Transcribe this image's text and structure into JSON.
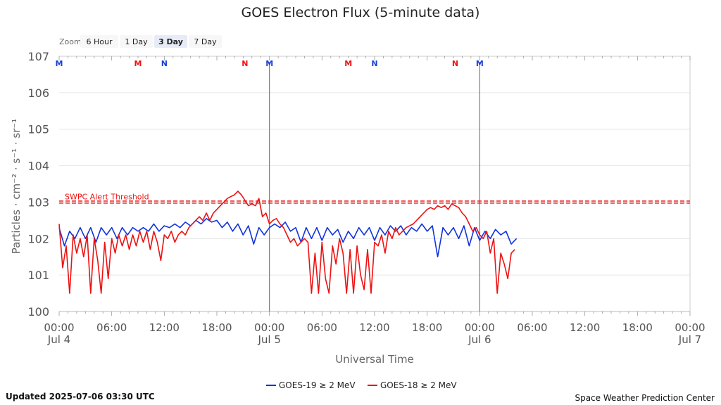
{
  "chart_data": {
    "type": "line",
    "title": "GOES Electron Flux (5-minute data)",
    "xlabel": "Universal Time",
    "ylabel": "Particles · cm⁻² · s⁻¹ · sr⁻¹",
    "y_scale": "log",
    "ylim_exponent": [
      0,
      7
    ],
    "yticks": [
      {
        "base": "10",
        "exp": "0"
      },
      {
        "base": "10",
        "exp": "1"
      },
      {
        "base": "10",
        "exp": "2"
      },
      {
        "base": "10",
        "exp": "3"
      },
      {
        "base": "10",
        "exp": "4"
      },
      {
        "base": "10",
        "exp": "5"
      },
      {
        "base": "10",
        "exp": "6"
      },
      {
        "base": "10",
        "exp": "7"
      }
    ],
    "xlim_hours": [
      0,
      72
    ],
    "xticks": [
      {
        "h": 0,
        "t": "00:00",
        "d": "Jul 4"
      },
      {
        "h": 6,
        "t": "06:00",
        "d": ""
      },
      {
        "h": 12,
        "t": "12:00",
        "d": ""
      },
      {
        "h": 18,
        "t": "18:00",
        "d": ""
      },
      {
        "h": 24,
        "t": "00:00",
        "d": "Jul 5"
      },
      {
        "h": 30,
        "t": "06:00",
        "d": ""
      },
      {
        "h": 36,
        "t": "12:00",
        "d": ""
      },
      {
        "h": 42,
        "t": "18:00",
        "d": ""
      },
      {
        "h": 48,
        "t": "00:00",
        "d": "Jul 6"
      },
      {
        "h": 54,
        "t": "06:00",
        "d": ""
      },
      {
        "h": 60,
        "t": "12:00",
        "d": ""
      },
      {
        "h": 66,
        "t": "18:00",
        "d": ""
      },
      {
        "h": 72,
        "t": "00:00",
        "d": "Jul 7"
      }
    ],
    "threshold": {
      "label": "SWPC Alert Threshold",
      "exponent": 3,
      "color": "#ee1111"
    },
    "day_lines_hours": [
      24,
      48
    ],
    "markers": [
      {
        "h": 0,
        "label": "M",
        "color": "#1a3fd6"
      },
      {
        "h": 9,
        "label": "M",
        "color": "#ee1111"
      },
      {
        "h": 12,
        "label": "N",
        "color": "#1a3fd6"
      },
      {
        "h": 21.2,
        "label": "N",
        "color": "#ee1111"
      },
      {
        "h": 24,
        "label": "M",
        "color": "#1a3fd6"
      },
      {
        "h": 33,
        "label": "M",
        "color": "#ee1111"
      },
      {
        "h": 36,
        "label": "N",
        "color": "#1a3fd6"
      },
      {
        "h": 45.2,
        "label": "N",
        "color": "#ee1111"
      },
      {
        "h": 48,
        "label": "M",
        "color": "#1a3fd6"
      }
    ],
    "series": [
      {
        "name": "GOES-19 ≥ 2 MeV",
        "color": "#1133dd",
        "points": [
          [
            0,
            2.3
          ],
          [
            0.6,
            1.8
          ],
          [
            1.2,
            2.2
          ],
          [
            1.8,
            2.0
          ],
          [
            2.4,
            2.3
          ],
          [
            3,
            2.0
          ],
          [
            3.6,
            2.3
          ],
          [
            4.2,
            1.9
          ],
          [
            4.8,
            2.3
          ],
          [
            5.4,
            2.1
          ],
          [
            6,
            2.3
          ],
          [
            6.6,
            2.0
          ],
          [
            7.2,
            2.3
          ],
          [
            7.8,
            2.1
          ],
          [
            8.4,
            2.3
          ],
          [
            9,
            2.2
          ],
          [
            9.6,
            2.3
          ],
          [
            10.2,
            2.2
          ],
          [
            10.8,
            2.4
          ],
          [
            11.4,
            2.2
          ],
          [
            12,
            2.35
          ],
          [
            12.6,
            2.3
          ],
          [
            13.2,
            2.4
          ],
          [
            13.8,
            2.3
          ],
          [
            14.4,
            2.45
          ],
          [
            15,
            2.35
          ],
          [
            15.6,
            2.5
          ],
          [
            16.2,
            2.4
          ],
          [
            16.8,
            2.55
          ],
          [
            17.4,
            2.45
          ],
          [
            18,
            2.5
          ],
          [
            18.6,
            2.3
          ],
          [
            19.2,
            2.45
          ],
          [
            19.8,
            2.2
          ],
          [
            20.4,
            2.4
          ],
          [
            21,
            2.1
          ],
          [
            21.6,
            2.35
          ],
          [
            22.2,
            1.85
          ],
          [
            22.8,
            2.3
          ],
          [
            23.4,
            2.1
          ],
          [
            24,
            2.3
          ],
          [
            24.6,
            2.4
          ],
          [
            25.2,
            2.3
          ],
          [
            25.8,
            2.45
          ],
          [
            26.4,
            2.2
          ],
          [
            27,
            2.3
          ],
          [
            27.6,
            1.9
          ],
          [
            28.2,
            2.3
          ],
          [
            28.8,
            2.0
          ],
          [
            29.4,
            2.3
          ],
          [
            30,
            1.95
          ],
          [
            30.6,
            2.3
          ],
          [
            31.2,
            2.1
          ],
          [
            31.8,
            2.25
          ],
          [
            32.4,
            1.9
          ],
          [
            33,
            2.2
          ],
          [
            33.6,
            2.0
          ],
          [
            34.2,
            2.3
          ],
          [
            34.8,
            2.1
          ],
          [
            35.4,
            2.3
          ],
          [
            36,
            1.95
          ],
          [
            36.6,
            2.3
          ],
          [
            37.2,
            2.1
          ],
          [
            37.8,
            2.35
          ],
          [
            38.4,
            2.2
          ],
          [
            39,
            2.35
          ],
          [
            39.6,
            2.1
          ],
          [
            40.2,
            2.3
          ],
          [
            40.8,
            2.2
          ],
          [
            41.4,
            2.4
          ],
          [
            42,
            2.2
          ],
          [
            42.6,
            2.35
          ],
          [
            43.2,
            1.5
          ],
          [
            43.8,
            2.3
          ],
          [
            44.4,
            2.1
          ],
          [
            45,
            2.3
          ],
          [
            45.6,
            2.0
          ],
          [
            46.2,
            2.35
          ],
          [
            46.8,
            1.8
          ],
          [
            47.4,
            2.3
          ],
          [
            48,
            1.95
          ],
          [
            48.6,
            2.2
          ],
          [
            49.2,
            2.0
          ],
          [
            49.8,
            2.25
          ],
          [
            50.4,
            2.1
          ],
          [
            51,
            2.2
          ],
          [
            51.6,
            1.85
          ],
          [
            52.2,
            2.0
          ]
        ]
      },
      {
        "name": "GOES-18 ≥ 2 MeV",
        "color": "#ee1111",
        "points": [
          [
            0,
            2.4
          ],
          [
            0.4,
            1.2
          ],
          [
            0.8,
            1.8
          ],
          [
            1.2,
            0.5
          ],
          [
            1.6,
            2.1
          ],
          [
            2,
            1.6
          ],
          [
            2.4,
            2.0
          ],
          [
            2.8,
            1.5
          ],
          [
            3.2,
            2.1
          ],
          [
            3.6,
            0.5
          ],
          [
            4,
            2.0
          ],
          [
            4.4,
            1.4
          ],
          [
            4.8,
            0.5
          ],
          [
            5.2,
            1.9
          ],
          [
            5.6,
            0.9
          ],
          [
            6,
            2.0
          ],
          [
            6.4,
            1.6
          ],
          [
            6.8,
            2.1
          ],
          [
            7.2,
            1.8
          ],
          [
            7.6,
            2.1
          ],
          [
            8,
            1.7
          ],
          [
            8.4,
            2.1
          ],
          [
            8.8,
            1.8
          ],
          [
            9.2,
            2.2
          ],
          [
            9.6,
            1.9
          ],
          [
            10,
            2.2
          ],
          [
            10.4,
            1.7
          ],
          [
            10.8,
            2.2
          ],
          [
            11.2,
            1.9
          ],
          [
            11.6,
            1.4
          ],
          [
            12,
            2.1
          ],
          [
            12.4,
            2.0
          ],
          [
            12.8,
            2.2
          ],
          [
            13.2,
            1.9
          ],
          [
            13.6,
            2.1
          ],
          [
            14,
            2.2
          ],
          [
            14.4,
            2.1
          ],
          [
            14.8,
            2.3
          ],
          [
            15.2,
            2.4
          ],
          [
            15.6,
            2.5
          ],
          [
            16,
            2.6
          ],
          [
            16.4,
            2.5
          ],
          [
            16.8,
            2.7
          ],
          [
            17.2,
            2.5
          ],
          [
            17.6,
            2.7
          ],
          [
            18,
            2.8
          ],
          [
            18.4,
            2.9
          ],
          [
            18.8,
            3.0
          ],
          [
            19.2,
            3.1
          ],
          [
            19.6,
            3.15
          ],
          [
            20,
            3.2
          ],
          [
            20.4,
            3.3
          ],
          [
            20.8,
            3.2
          ],
          [
            21.2,
            3.05
          ],
          [
            21.6,
            2.9
          ],
          [
            22,
            2.95
          ],
          [
            22.4,
            2.9
          ],
          [
            22.8,
            3.1
          ],
          [
            23.2,
            2.6
          ],
          [
            23.6,
            2.7
          ],
          [
            24,
            2.4
          ],
          [
            24.4,
            2.5
          ],
          [
            24.8,
            2.55
          ],
          [
            25.2,
            2.4
          ],
          [
            25.6,
            2.3
          ],
          [
            26,
            2.1
          ],
          [
            26.4,
            1.9
          ],
          [
            26.8,
            2.0
          ],
          [
            27.2,
            1.8
          ],
          [
            27.6,
            1.9
          ],
          [
            28,
            2.0
          ],
          [
            28.4,
            1.9
          ],
          [
            28.8,
            0.5
          ],
          [
            29.2,
            1.6
          ],
          [
            29.6,
            0.5
          ],
          [
            30,
            1.9
          ],
          [
            30.4,
            0.9
          ],
          [
            30.8,
            0.5
          ],
          [
            31.2,
            1.8
          ],
          [
            31.6,
            1.3
          ],
          [
            32,
            2.0
          ],
          [
            32.4,
            1.6
          ],
          [
            32.8,
            0.5
          ],
          [
            33.2,
            1.7
          ],
          [
            33.6,
            0.5
          ],
          [
            34,
            1.8
          ],
          [
            34.4,
            1.0
          ],
          [
            34.8,
            0.6
          ],
          [
            35.2,
            1.7
          ],
          [
            35.6,
            0.5
          ],
          [
            36,
            1.9
          ],
          [
            36.4,
            1.8
          ],
          [
            36.8,
            2.1
          ],
          [
            37.2,
            1.6
          ],
          [
            37.6,
            2.2
          ],
          [
            38,
            2.0
          ],
          [
            38.4,
            2.3
          ],
          [
            38.8,
            2.1
          ],
          [
            39.2,
            2.2
          ],
          [
            39.6,
            2.3
          ],
          [
            40,
            2.35
          ],
          [
            40.4,
            2.4
          ],
          [
            40.8,
            2.5
          ],
          [
            41.2,
            2.6
          ],
          [
            41.6,
            2.7
          ],
          [
            42,
            2.8
          ],
          [
            42.4,
            2.85
          ],
          [
            42.8,
            2.8
          ],
          [
            43.2,
            2.9
          ],
          [
            43.6,
            2.85
          ],
          [
            44,
            2.9
          ],
          [
            44.4,
            2.8
          ],
          [
            44.8,
            2.95
          ],
          [
            45.2,
            2.9
          ],
          [
            45.6,
            2.85
          ],
          [
            46,
            2.7
          ],
          [
            46.4,
            2.6
          ],
          [
            46.8,
            2.4
          ],
          [
            47.2,
            2.2
          ],
          [
            47.6,
            2.3
          ],
          [
            48,
            2.1
          ],
          [
            48.4,
            2.0
          ],
          [
            48.8,
            2.2
          ],
          [
            49.2,
            1.6
          ],
          [
            49.6,
            2.0
          ],
          [
            50,
            0.5
          ],
          [
            50.4,
            1.6
          ],
          [
            50.8,
            1.3
          ],
          [
            51.2,
            0.9
          ],
          [
            51.6,
            1.6
          ],
          [
            52,
            1.7
          ]
        ]
      }
    ]
  },
  "zoom": {
    "label": "Zoom",
    "buttons": [
      {
        "label": "6 Hour",
        "active": false
      },
      {
        "label": "1 Day",
        "active": false
      },
      {
        "label": "3 Day",
        "active": true
      },
      {
        "label": "7 Day",
        "active": false
      }
    ]
  },
  "footer": {
    "updated": "Updated 2025-07-06 03:30 UTC",
    "credit": "Space Weather Prediction Center"
  }
}
